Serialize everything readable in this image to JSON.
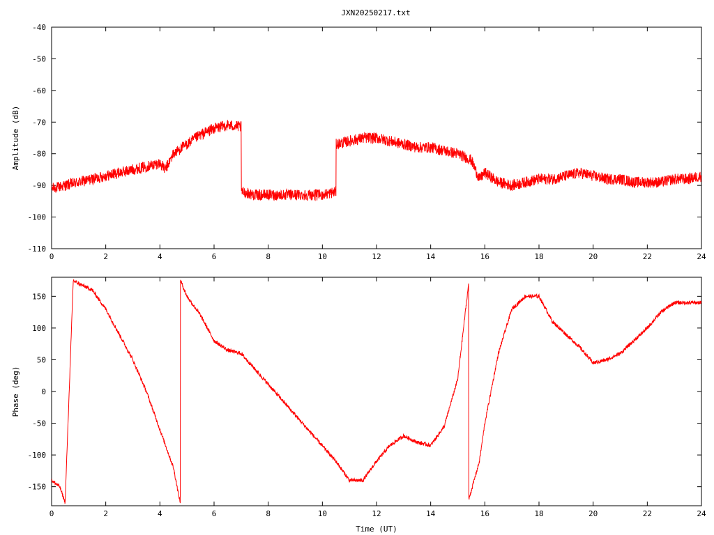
{
  "title": "JXN20250217.txt",
  "colors": {
    "trace": "#ff0000",
    "axes": "#000000",
    "background": "#ffffff"
  },
  "chart_data": [
    {
      "type": "line",
      "name": "amplitude-panel",
      "ylabel": "Amplitude (dB)",
      "xlabel": "",
      "xlim": [
        0,
        24
      ],
      "ylim": [
        -110,
        -40
      ],
      "xticks": [
        0,
        2,
        4,
        6,
        8,
        10,
        12,
        14,
        16,
        18,
        20,
        22,
        24
      ],
      "yticks": [
        -110,
        -100,
        -90,
        -80,
        -70,
        -60,
        -50,
        -40
      ],
      "grid": false,
      "series": [
        {
          "x": [
            0,
            0.5,
            1,
            1.5,
            2,
            2.5,
            3,
            3.5,
            4,
            4.2,
            4.5,
            5,
            5.5,
            6,
            6.5,
            7.0,
            7.01,
            7.5,
            8,
            8.5,
            9,
            9.5,
            10,
            10.5,
            10.51,
            11,
            11.5,
            12,
            12.5,
            13,
            13.5,
            14,
            14.5,
            15,
            15.5,
            15.8,
            16,
            16.5,
            17,
            17.5,
            18,
            18.5,
            19,
            19.5,
            20,
            20.5,
            21,
            21.5,
            22,
            22.5,
            23,
            23.5,
            24
          ],
          "y": [
            -91,
            -90,
            -89,
            -88,
            -87,
            -86,
            -85,
            -84,
            -83,
            -85,
            -80,
            -77,
            -74,
            -72,
            -71,
            -71.5,
            -92,
            -93,
            -93,
            -93,
            -93,
            -93,
            -93,
            -92,
            -77,
            -76,
            -75,
            -75,
            -76,
            -77,
            -78,
            -78,
            -79,
            -80,
            -82,
            -88,
            -86,
            -89,
            -90,
            -89,
            -88,
            -88,
            -87,
            -86,
            -87,
            -88,
            -88,
            -89,
            -89,
            -89,
            -88,
            -88,
            -87
          ]
        }
      ]
    },
    {
      "type": "line",
      "name": "phase-panel",
      "ylabel": "Phase (deg)",
      "xlabel": "Time (UT)",
      "xlim": [
        0,
        24
      ],
      "ylim": [
        -180,
        180
      ],
      "xticks": [
        0,
        2,
        4,
        6,
        8,
        10,
        12,
        14,
        16,
        18,
        20,
        22,
        24
      ],
      "yticks": [
        -150,
        -100,
        -50,
        0,
        50,
        100,
        150
      ],
      "grid": false,
      "series": [
        {
          "x": [
            0,
            0.3,
            0.5,
            0.8,
            1,
            1.5,
            2,
            2.5,
            3,
            3.5,
            4,
            4.5,
            4.75,
            4.76,
            5,
            5.5,
            6,
            6.5,
            7,
            10.5,
            11,
            11.5,
            12,
            12.5,
            13,
            13.5,
            14,
            14.5,
            15,
            15.4,
            15.41,
            15.8,
            16,
            16.5,
            17,
            17.5,
            18,
            18.5,
            19,
            19.5,
            20,
            20.5,
            21,
            21.5,
            22,
            22.5,
            23,
            23.5,
            24
          ],
          "y": [
            -140,
            -150,
            -175,
            175,
            170,
            160,
            130,
            90,
            50,
            0,
            -60,
            -120,
            -175,
            175,
            150,
            120,
            80,
            65,
            60,
            -110,
            -140,
            -140,
            -110,
            -85,
            -70,
            -80,
            -85,
            -55,
            20,
            170,
            -170,
            -110,
            -50,
            60,
            130,
            150,
            150,
            110,
            90,
            70,
            45,
            50,
            60,
            80,
            100,
            125,
            140,
            140,
            140
          ]
        }
      ]
    }
  ]
}
